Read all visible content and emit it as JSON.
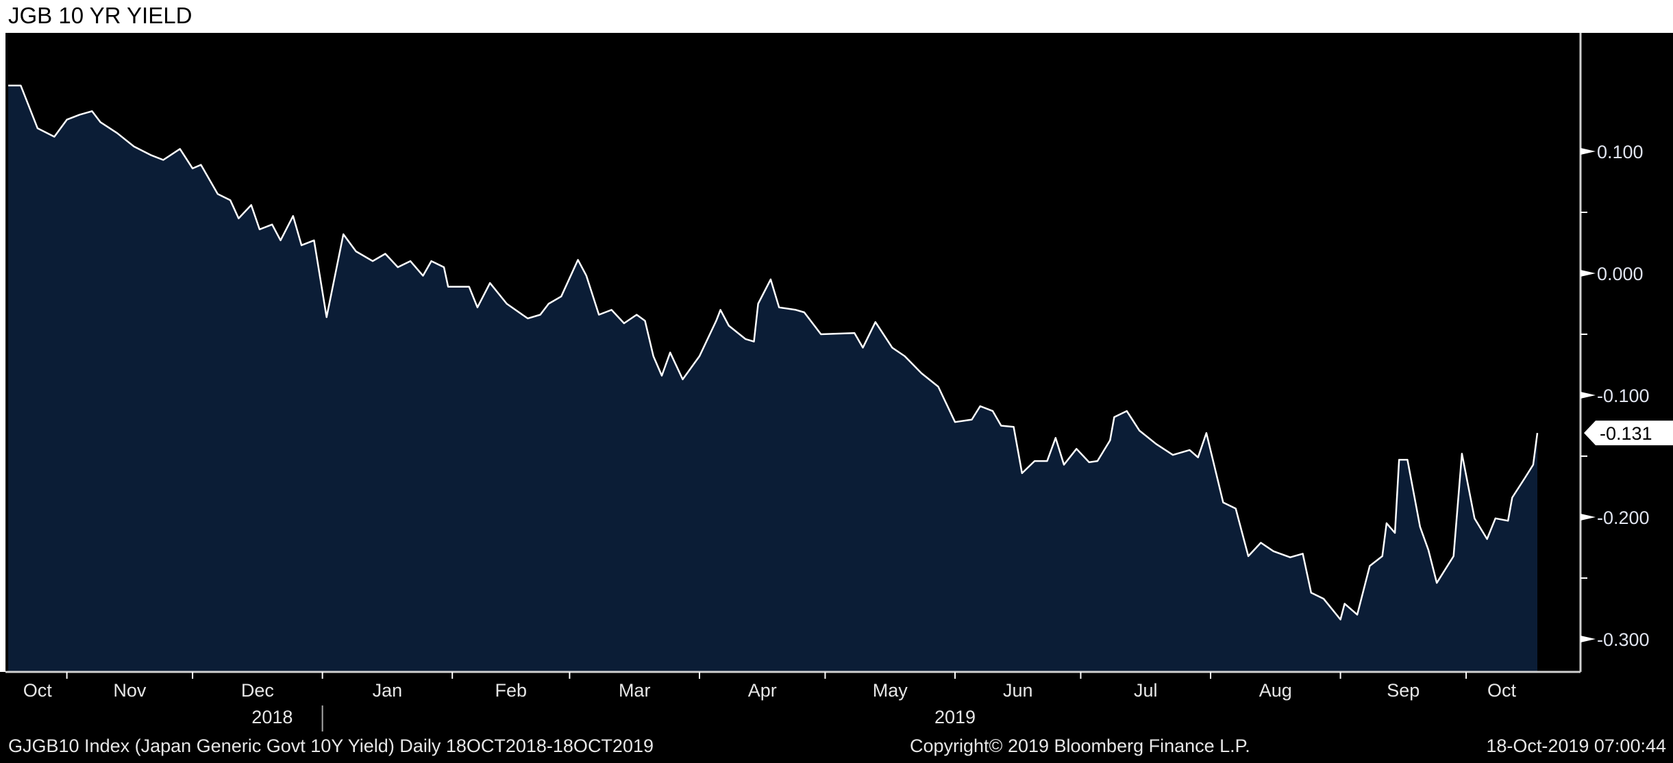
{
  "title": "JGB 10 YR YIELD",
  "footer": {
    "left": "GJGB10 Index (Japan Generic Govt 10Y Yield)  Daily 18OCT2018-18OCT2019",
    "center": "Copyright© 2019 Bloomberg Finance L.P.",
    "right": "18-Oct-2019 07:00:44"
  },
  "colors": {
    "background": "#000000",
    "area": "#0b1d36",
    "line": "#ffffff",
    "axis_text": "#dfe3ee"
  },
  "chart_data": {
    "type": "area",
    "title": "JGB 10 YR YIELD",
    "xlabel": "",
    "ylabel": "",
    "x_unit": "days since 18-Oct-2018",
    "xlim": [
      0,
      365
    ],
    "ylim": [
      -0.33,
      0.2
    ],
    "y_axis_position": "right",
    "yticks": [
      0.1,
      0.0,
      -0.1,
      -0.2,
      -0.3
    ],
    "ytick_labels": [
      "0.100",
      "0.000",
      "-0.100",
      "-0.200",
      "-0.300"
    ],
    "last_value_label": "-0.131",
    "last_value": -0.131,
    "grid": false,
    "month_boundaries": [
      14,
      44,
      75,
      106,
      134,
      165,
      195,
      226,
      256,
      287,
      318,
      348
    ],
    "months": [
      {
        "label": "Oct",
        "start": 0,
        "end": 14
      },
      {
        "label": "Nov",
        "start": 14,
        "end": 44
      },
      {
        "label": "Dec",
        "start": 44,
        "end": 75
      },
      {
        "label": "Jan",
        "start": 75,
        "end": 106
      },
      {
        "label": "Feb",
        "start": 106,
        "end": 134
      },
      {
        "label": "Mar",
        "start": 134,
        "end": 165
      },
      {
        "label": "Apr",
        "start": 165,
        "end": 195
      },
      {
        "label": "May",
        "start": 195,
        "end": 226
      },
      {
        "label": "Jun",
        "start": 226,
        "end": 256
      },
      {
        "label": "Jul",
        "start": 256,
        "end": 287
      },
      {
        "label": "Aug",
        "start": 287,
        "end": 318
      },
      {
        "label": "Sep",
        "start": 318,
        "end": 348
      },
      {
        "label": "Oct",
        "start": 348,
        "end": 365
      }
    ],
    "years": [
      {
        "label": "2018",
        "center": 29
      },
      {
        "label": "2019",
        "center": 226
      }
    ],
    "year_divider": 75,
    "series": [
      {
        "name": "GJGB10 Index",
        "x": [
          0,
          3,
          7,
          11,
          14,
          17,
          20,
          22,
          26,
          30,
          34,
          37,
          41,
          44,
          46,
          50,
          53,
          55,
          58,
          60,
          63,
          65,
          68,
          70,
          73,
          76,
          80,
          83,
          87,
          90,
          93,
          96,
          99,
          101,
          104,
          105,
          110,
          112,
          115,
          119,
          124,
          127,
          129,
          132,
          136,
          138,
          141,
          144,
          147,
          150,
          152,
          154,
          156,
          158,
          161,
          165,
          169,
          170,
          172,
          176,
          178,
          179,
          182,
          184,
          188,
          190,
          194,
          202,
          204,
          207,
          211,
          214,
          218,
          222,
          226,
          230,
          232,
          235,
          237,
          240,
          242,
          245,
          248,
          250,
          252,
          255,
          258,
          260,
          263,
          264,
          267,
          270,
          274,
          278,
          282,
          284,
          286,
          290,
          293,
          296,
          299,
          302,
          306,
          309,
          311,
          314,
          318,
          319,
          322,
          325,
          328,
          329,
          331,
          332,
          334,
          337,
          339,
          341,
          345,
          347,
          350,
          353,
          355,
          358,
          359,
          362,
          364,
          365
        ],
        "y": [
          0.154,
          0.154,
          0.119,
          0.112,
          0.126,
          0.13,
          0.133,
          0.124,
          0.115,
          0.104,
          0.097,
          0.093,
          0.102,
          0.086,
          0.089,
          0.065,
          0.06,
          0.045,
          0.056,
          0.036,
          0.04,
          0.027,
          0.047,
          0.023,
          0.027,
          -0.036,
          0.032,
          0.018,
          0.01,
          0.016,
          0.005,
          0.01,
          -0.002,
          0.01,
          0.005,
          -0.011,
          -0.011,
          -0.028,
          -0.008,
          -0.025,
          -0.037,
          -0.034,
          -0.025,
          -0.019,
          0.011,
          -0.002,
          -0.034,
          -0.03,
          -0.041,
          -0.034,
          -0.039,
          -0.068,
          -0.084,
          -0.065,
          -0.087,
          -0.068,
          -0.039,
          -0.03,
          -0.043,
          -0.054,
          -0.056,
          -0.025,
          -0.005,
          -0.028,
          -0.03,
          -0.032,
          -0.05,
          -0.049,
          -0.061,
          -0.04,
          -0.061,
          -0.068,
          -0.082,
          -0.093,
          -0.122,
          -0.12,
          -0.109,
          -0.113,
          -0.125,
          -0.126,
          -0.164,
          -0.154,
          -0.154,
          -0.135,
          -0.157,
          -0.144,
          -0.155,
          -0.154,
          -0.137,
          -0.118,
          -0.113,
          -0.129,
          -0.14,
          -0.149,
          -0.145,
          -0.151,
          -0.131,
          -0.188,
          -0.193,
          -0.232,
          -0.221,
          -0.228,
          -0.233,
          -0.23,
          -0.262,
          -0.267,
          -0.284,
          -0.271,
          -0.28,
          -0.24,
          -0.232,
          -0.205,
          -0.213,
          -0.153,
          -0.153,
          -0.208,
          -0.227,
          -0.254,
          -0.232,
          -0.148,
          -0.201,
          -0.218,
          -0.201,
          -0.203,
          -0.184,
          -0.168,
          -0.157,
          -0.131
        ]
      }
    ]
  }
}
